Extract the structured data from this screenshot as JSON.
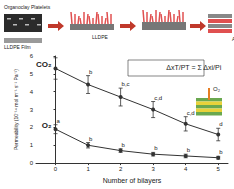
{
  "chart_data": {
    "type": "line",
    "x_label": "Number of bilayers",
    "y_label": "Permeability (10⁻¹⁴ mol m⁻¹ s⁻¹ Pa⁻¹)",
    "x": [
      0,
      1,
      2,
      3,
      4,
      5
    ],
    "series": [
      {
        "name": "CO₂",
        "color": "#333333",
        "values": [
          5.3,
          4.4,
          3.7,
          3.0,
          2.2,
          1.6
        ],
        "errors": [
          0.6,
          0.5,
          0.5,
          0.45,
          0.4,
          0.35
        ],
        "point_labels": [
          "a",
          "b",
          "b,c",
          "c,d",
          "c,d",
          "d"
        ],
        "marker": "circle"
      },
      {
        "name": "O₂",
        "color": "#333333",
        "values": [
          1.9,
          1.0,
          0.7,
          0.5,
          0.4,
          0.3
        ],
        "errors": [
          0.25,
          0.15,
          0.1,
          0.1,
          0.1,
          0.08
        ],
        "point_labels": [
          "a",
          "b",
          "b",
          "b",
          "b",
          "b"
        ],
        "marker": "circle"
      }
    ],
    "xlim": [
      -0.6,
      5.3
    ],
    "ylim": [
      0,
      6
    ],
    "xticks": [
      0,
      1,
      2,
      3,
      4,
      5
    ],
    "yticks": [
      0,
      1,
      2,
      3,
      4,
      5,
      6
    ],
    "grid": false,
    "annotations": [
      "Organoclay Platelets",
      "LLDPE",
      "LLDPE Film",
      "Alternate Deposition",
      "O₂",
      "ΔxT/PT = Σ Δxi/Pi"
    ]
  }
}
